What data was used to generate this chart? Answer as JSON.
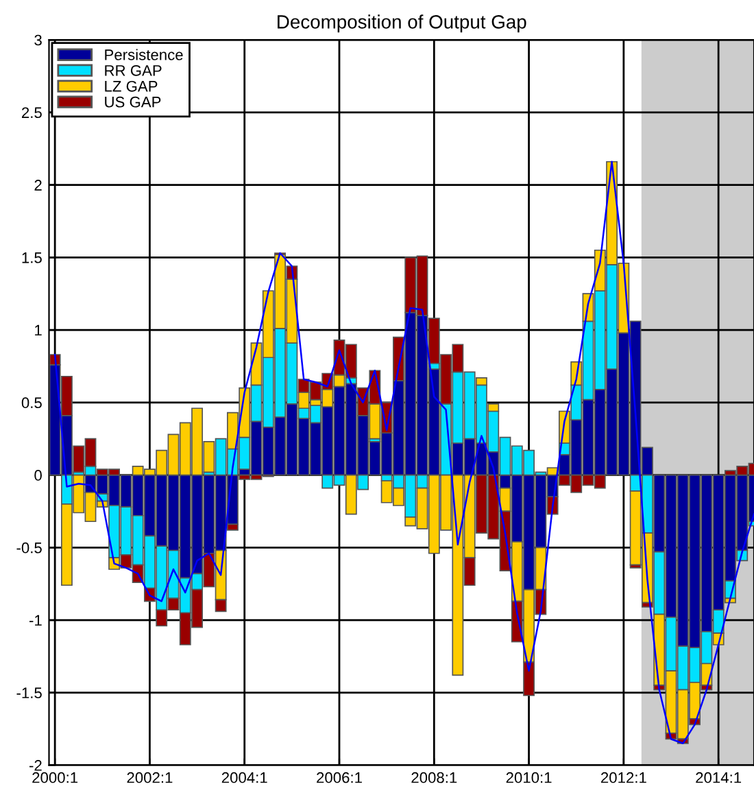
{
  "chart_data": {
    "type": "bar",
    "stacked": true,
    "title": "Decomposition of Output Gap",
    "categories": [
      "2000:1",
      null,
      null,
      null,
      null,
      null,
      null,
      null,
      "2002:1",
      null,
      null,
      null,
      null,
      null,
      null,
      null,
      "2004:1",
      null,
      null,
      null,
      null,
      null,
      null,
      null,
      "2006:1",
      null,
      null,
      null,
      null,
      null,
      null,
      null,
      "2008:1",
      null,
      null,
      null,
      null,
      null,
      null,
      null,
      "2010:1",
      null,
      null,
      null,
      null,
      null,
      null,
      null,
      "2012:1",
      null,
      null,
      null,
      null,
      null,
      null,
      null,
      "2014:1",
      null,
      null,
      null
    ],
    "series": [
      {
        "name": "Persistence",
        "color": "#000099",
        "values": [
          0.76,
          0.41,
          0,
          -0.12,
          -0.13,
          -0.21,
          -0.22,
          -0.28,
          -0.42,
          -0.49,
          -0.52,
          -0.71,
          -0.68,
          -0.54,
          -0.52,
          -0.34,
          0.04,
          0.37,
          0.33,
          0.4,
          0.49,
          0.39,
          0.36,
          0.47,
          0.61,
          0.63,
          0.41,
          0.23,
          0.29,
          0.65,
          1.12,
          1.1,
          0.73,
          0,
          0.22,
          0.25,
          0.22,
          0.16,
          -0.09,
          -0.46,
          -0.79,
          -0.5,
          -0.15,
          0.14,
          0.38,
          0.52,
          0.59,
          0.73,
          0.98,
          1.06,
          0.19,
          -0.53,
          -0.98,
          -1.18,
          -1.19,
          -1.08,
          -0.93,
          -0.73,
          -0.52,
          -0.32
        ]
      },
      {
        "name": "RR GAP",
        "color": "#00e0ff",
        "values": [
          0,
          -0.2,
          0.02,
          0.06,
          -0.05,
          -0.36,
          -0.33,
          -0.34,
          -0.36,
          -0.44,
          -0.33,
          -0.24,
          -0.11,
          0.02,
          0.25,
          0.18,
          0.22,
          0.25,
          0.48,
          0.61,
          0.42,
          0.07,
          0.12,
          -0.09,
          -0.07,
          0.04,
          -0.1,
          0.02,
          -0.04,
          -0.09,
          -0.29,
          -0.09,
          0.04,
          0.49,
          0.49,
          0.46,
          0.4,
          0.28,
          0.26,
          0.2,
          0.17,
          0.02,
          0,
          0.08,
          0.24,
          0.54,
          0.68,
          0.72,
          0,
          -0.11,
          -0.4,
          -0.43,
          -0.37,
          -0.3,
          -0.24,
          -0.22,
          -0.16,
          -0.12,
          -0.07,
          -0.03
        ]
      },
      {
        "name": "LZ GAP",
        "color": "#ffcc00",
        "values": [
          0,
          -0.56,
          -0.26,
          -0.2,
          -0.04,
          -0.08,
          0,
          0.06,
          0.04,
          0.17,
          0.28,
          0.36,
          0.46,
          0.21,
          -0.34,
          0.25,
          0.34,
          0.29,
          0.46,
          0.51,
          0.44,
          0.11,
          0.04,
          0.12,
          0.08,
          -0.27,
          0,
          0.24,
          -0.15,
          -0.12,
          -0.06,
          -0.28,
          -0.54,
          -0.38,
          -1.38,
          -0.57,
          0.05,
          0.05,
          -0.16,
          -0.41,
          -0.5,
          -0.29,
          0.05,
          0.22,
          0.16,
          0.19,
          0.28,
          0.71,
          0.48,
          -0.51,
          -0.48,
          -0.49,
          -0.43,
          -0.34,
          -0.25,
          -0.15,
          -0.08,
          -0.03,
          0,
          0
        ]
      },
      {
        "name": "US GAP",
        "color": "#990000",
        "values": [
          0.07,
          0.27,
          0.18,
          0.19,
          0.04,
          0.04,
          -0.09,
          -0.12,
          -0.09,
          -0.11,
          -0.08,
          -0.22,
          -0.26,
          -0.23,
          -0.08,
          -0.04,
          -0.03,
          -0.03,
          -0.01,
          0.01,
          0.09,
          0.09,
          0.12,
          0.11,
          0.24,
          0.23,
          0.19,
          0.23,
          0.21,
          0.3,
          0.38,
          0.41,
          0.31,
          0.34,
          0.19,
          -0.19,
          -0.4,
          -0.44,
          -0.41,
          -0.28,
          -0.23,
          -0.17,
          -0.12,
          -0.07,
          -0.12,
          -0.07,
          -0.09,
          0,
          0,
          -0.02,
          -0.03,
          -0.03,
          -0.04,
          -0.03,
          -0.04,
          -0.03,
          0,
          0.03,
          0.06,
          0.08
        ]
      },
      {
        "type": "line",
        "color": "#0000ff",
        "values": [
          0.83,
          -0.08,
          -0.06,
          -0.07,
          -0.18,
          -0.61,
          -0.64,
          -0.68,
          -0.83,
          -0.87,
          -0.65,
          -0.81,
          -0.59,
          -0.54,
          -0.69,
          0.05,
          0.57,
          0.88,
          1.26,
          1.53,
          1.44,
          0.66,
          0.64,
          0.61,
          0.86,
          0.63,
          0.5,
          0.72,
          0.31,
          0.74,
          1.15,
          1.14,
          0.54,
          0.45,
          -0.48,
          -0.05,
          0.27,
          0.05,
          -0.4,
          -0.95,
          -1.35,
          -0.94,
          -0.22,
          0.37,
          0.66,
          1.18,
          1.46,
          2.16,
          1.46,
          0.42,
          -0.72,
          -1.48,
          -1.82,
          -1.85,
          -1.72,
          -1.48,
          -1.17,
          -0.85,
          -0.53,
          -0.27
        ]
      }
    ],
    "ylim": [
      -2,
      3
    ],
    "yticks": [
      -2,
      -1.5,
      -1,
      -0.5,
      0,
      0.5,
      1,
      1.5,
      2,
      2.5,
      3
    ],
    "grid": true,
    "legend": "top left"
  }
}
